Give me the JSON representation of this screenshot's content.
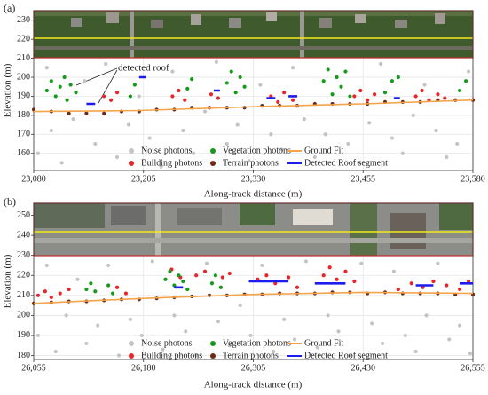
{
  "chart_data": [
    {
      "type": "scatter",
      "label": "(a)",
      "annotation": "detected roof",
      "xlabel": "Along-track distance (m)",
      "ylabel": "Elevation (m)",
      "xlim": [
        23080,
        23580
      ],
      "ylim": [
        151,
        235
      ],
      "grid": true,
      "xticks": [
        {
          "value": 23080,
          "label": "23,080"
        },
        {
          "value": 23205,
          "label": "23,205"
        },
        {
          "value": 23330,
          "label": "23,330"
        },
        {
          "value": 23455,
          "label": "23,455"
        },
        {
          "value": 23580,
          "label": "23,580"
        }
      ],
      "yticks": [
        160,
        170,
        180,
        190,
        200,
        210,
        220,
        230
      ],
      "series": [
        {
          "name": "Noise photons",
          "type": "scatter",
          "color": "#c4c4c4",
          "x": [
            23085,
            23095,
            23100,
            23112,
            23125,
            23138,
            23150,
            23162,
            23175,
            23188,
            23200,
            23212,
            23225,
            23238,
            23250,
            23262,
            23275,
            23288,
            23300,
            23312,
            23325,
            23338,
            23350,
            23362,
            23375,
            23388,
            23400,
            23412,
            23425,
            23438,
            23450,
            23462,
            23475,
            23488,
            23500,
            23512,
            23525,
            23538,
            23550,
            23562,
            23575
          ],
          "values": [
            160,
            205,
            172,
            155,
            178,
            198,
            165,
            207,
            158,
            175,
            190,
            168,
            153,
            203,
            172,
            160,
            182,
            208,
            165,
            175,
            156,
            196,
            170,
            162,
            205,
            178,
            158,
            170,
            200,
            165,
            155,
            176,
            207,
            168,
            160,
            180,
            196,
            172,
            158,
            165,
            203
          ]
        },
        {
          "name": "Building photons",
          "type": "scatter",
          "color": "#e8262a",
          "x": [
            23160,
            23168,
            23175,
            23238,
            23245,
            23252,
            23282,
            23290,
            23350,
            23358,
            23365,
            23375,
            23445,
            23452,
            23460,
            23468,
            23515,
            23522,
            23530,
            23540,
            23548
          ],
          "values": [
            190,
            188,
            192,
            190,
            193,
            188,
            191,
            189,
            190,
            187,
            192,
            188,
            190,
            193,
            188,
            191,
            190,
            193,
            188,
            191,
            189
          ]
        },
        {
          "name": "Vegetation photons",
          "type": "scatter",
          "color": "#159a1c",
          "x": [
            23095,
            23100,
            23105,
            23110,
            23115,
            23118,
            23122,
            23128,
            23190,
            23195,
            23255,
            23260,
            23300,
            23305,
            23310,
            23315,
            23320,
            23410,
            23415,
            23420,
            23425,
            23430,
            23435,
            23440,
            23480,
            23488,
            23495,
            23565,
            23572
          ],
          "values": [
            193,
            198,
            190,
            195,
            200,
            188,
            196,
            192,
            190,
            196,
            194,
            199,
            197,
            203,
            192,
            200,
            195,
            198,
            204,
            191,
            200,
            195,
            203,
            190,
            192,
            198,
            200,
            193,
            198
          ]
        },
        {
          "name": "Terrain photons",
          "type": "scatter",
          "color": "#6e2a12",
          "x": [
            23080,
            23100,
            23120,
            23140,
            23160,
            23180,
            23200,
            23220,
            23240,
            23260,
            23280,
            23300,
            23320,
            23340,
            23360,
            23380,
            23400,
            23420,
            23440,
            23460,
            23480,
            23500,
            23520,
            23540,
            23560,
            23580
          ],
          "values": [
            183,
            182,
            181,
            181,
            181,
            182,
            182,
            183,
            183,
            184,
            184,
            184,
            184,
            185,
            185,
            185,
            186,
            186,
            186,
            186,
            187,
            187,
            187,
            188,
            188,
            188
          ]
        },
        {
          "name": "Ground Fit",
          "type": "line",
          "color": "#f4a44a",
          "x": [
            23080,
            23200,
            23330,
            23455,
            23580
          ],
          "values": [
            182,
            182.5,
            184.5,
            186,
            188
          ]
        },
        {
          "name": "Detected Roof segment",
          "type": "line",
          "color": "#1c1cf0",
          "x": [
            23140,
            23150,
            null,
            23200,
            23208,
            null,
            23285,
            23292,
            null,
            23345,
            23355,
            null,
            23370,
            23380,
            null,
            23490,
            23497
          ],
          "values": [
            186,
            186,
            null,
            200,
            200,
            null,
            193,
            193,
            null,
            189,
            189,
            null,
            190,
            190,
            null,
            189,
            189
          ]
        }
      ]
    },
    {
      "type": "scatter",
      "label": "(b)",
      "xlabel": "Along-track distance (m)",
      "ylabel": "Elevation (m)",
      "xlim": [
        26055,
        26555
      ],
      "ylim": [
        178,
        256
      ],
      "grid": true,
      "xticks": [
        {
          "value": 26055,
          "label": "26,055"
        },
        {
          "value": 26180,
          "label": "26,180"
        },
        {
          "value": 26305,
          "label": "26,305"
        },
        {
          "value": 26430,
          "label": "26,430"
        },
        {
          "value": 26555,
          "label": "26,555"
        }
      ],
      "yticks": [
        180,
        190,
        200,
        210,
        220,
        230,
        240,
        250
      ],
      "series": [
        {
          "name": "Noise photons",
          "type": "scatter",
          "color": "#c4c4c4",
          "x": [
            26060,
            26070,
            26080,
            26092,
            26105,
            26115,
            26128,
            26140,
            26152,
            26165,
            26178,
            26190,
            26202,
            26215,
            26228,
            26240,
            26252,
            26265,
            26278,
            26290,
            26302,
            26315,
            26328,
            26340,
            26352,
            26365,
            26378,
            26390,
            26402,
            26415,
            26428,
            26440,
            26452,
            26465,
            26478,
            26490,
            26502,
            26515,
            26528,
            26540,
            26552
          ],
          "values": [
            190,
            225,
            182,
            200,
            218,
            186,
            195,
            225,
            180,
            198,
            190,
            227,
            183,
            200,
            192,
            180,
            226,
            197,
            185,
            205,
            190,
            225,
            182,
            198,
            188,
            227,
            184,
            200,
            192,
            180,
            226,
            196,
            186,
            222,
            190,
            182,
            200,
            226,
            188,
            195,
            181
          ]
        },
        {
          "name": "Building photons",
          "type": "scatter",
          "color": "#e8262a",
          "x": [
            26060,
            26068,
            26075,
            26085,
            26095,
            26150,
            26160,
            26212,
            26222,
            26240,
            26250,
            26270,
            26278,
            26310,
            26320,
            26330,
            26345,
            26355,
            26385,
            26392,
            26400,
            26410,
            26420,
            26470,
            26485,
            26498,
            26510,
            26525,
            26540,
            26550
          ],
          "values": [
            210,
            212,
            209,
            211,
            213,
            214,
            211,
            223,
            219,
            220,
            222,
            219,
            221,
            218,
            220,
            216,
            219,
            214,
            220,
            224,
            218,
            222,
            217,
            213,
            216,
            214,
            217,
            215,
            213,
            217
          ]
        },
        {
          "name": "Vegetation photons",
          "type": "scatter",
          "color": "#159a1c",
          "x": [
            26115,
            26120,
            26125,
            26140,
            26145,
            26205,
            26210,
            26215,
            26220,
            26225,
            26230,
            26258,
            26262,
            26268
          ],
          "values": [
            213,
            216,
            212,
            215,
            211,
            218,
            222,
            215,
            220,
            217,
            213,
            216,
            220,
            214
          ]
        },
        {
          "name": "Terrain photons",
          "type": "scatter",
          "color": "#6e2a12",
          "x": [
            26055,
            26075,
            26095,
            26115,
            26135,
            26155,
            26175,
            26195,
            26215,
            26235,
            26255,
            26275,
            26295,
            26315,
            26335,
            26355,
            26375,
            26395,
            26415,
            26435,
            26455,
            26475,
            26495,
            26515,
            26535,
            26555
          ],
          "values": [
            206,
            206.5,
            207,
            207,
            207.5,
            208,
            208,
            208.5,
            209,
            209.5,
            210,
            210,
            210.5,
            210.5,
            211,
            211,
            211,
            211.5,
            211.5,
            211,
            211.5,
            211,
            211,
            211,
            210.5,
            210.5
          ]
        },
        {
          "name": "Ground Fit",
          "type": "line",
          "color": "#f4a44a",
          "x": [
            26055,
            26180,
            26305,
            26430,
            26555
          ],
          "values": [
            206,
            208.5,
            210.5,
            211.5,
            211
          ]
        },
        {
          "name": "Detected Roof segment",
          "type": "line",
          "color": "#1c1cf0",
          "x": [
            26215,
            26225,
            null,
            26300,
            26345,
            null,
            26375,
            26410,
            null,
            26490,
            26510,
            null,
            26540,
            26555
          ],
          "values": [
            214,
            214,
            null,
            217,
            217,
            null,
            216,
            216,
            null,
            215,
            215,
            null,
            216,
            216
          ]
        }
      ]
    }
  ]
}
